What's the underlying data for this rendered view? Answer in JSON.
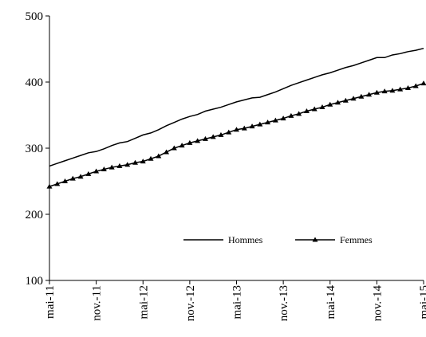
{
  "chart_data": {
    "type": "line",
    "categories": [
      "mai-11",
      null,
      null,
      null,
      null,
      null,
      "nov.-11",
      null,
      null,
      null,
      null,
      null,
      "mai-12",
      null,
      null,
      null,
      null,
      null,
      "nov.-12",
      null,
      null,
      null,
      null,
      null,
      "mai-13",
      null,
      null,
      null,
      null,
      null,
      "nov.-13",
      null,
      null,
      null,
      null,
      null,
      "mai-14",
      null,
      null,
      null,
      null,
      null,
      "nov.-14",
      null,
      null,
      null,
      null,
      null,
      "mai-15"
    ],
    "series": [
      {
        "name": "Hommes",
        "color": "#000000",
        "marker": "none",
        "values": [
          273,
          277,
          281,
          285,
          289,
          293,
          295,
          299,
          304,
          308,
          310,
          315,
          320,
          323,
          328,
          334,
          339,
          344,
          348,
          351,
          356,
          359,
          362,
          366,
          370,
          373,
          376,
          377,
          381,
          385,
          390,
          395,
          399,
          403,
          407,
          411,
          414,
          418,
          422,
          425,
          429,
          433,
          437,
          437,
          441,
          443,
          446,
          448,
          451
        ]
      },
      {
        "name": "Femmes",
        "color": "#000000",
        "marker": "triangle",
        "values": [
          242,
          246,
          250,
          254,
          257,
          261,
          265,
          268,
          271,
          273,
          275,
          278,
          280,
          284,
          288,
          294,
          300,
          304,
          308,
          311,
          314,
          317,
          320,
          324,
          328,
          330,
          333,
          336,
          339,
          342,
          345,
          349,
          352,
          356,
          359,
          362,
          366,
          369,
          372,
          375,
          378,
          381,
          384,
          386,
          387,
          389,
          391,
          394,
          398
        ]
      }
    ],
    "ylim": [
      100,
      500
    ],
    "yticks": [
      100,
      200,
      300,
      400,
      500
    ],
    "grid": false
  }
}
